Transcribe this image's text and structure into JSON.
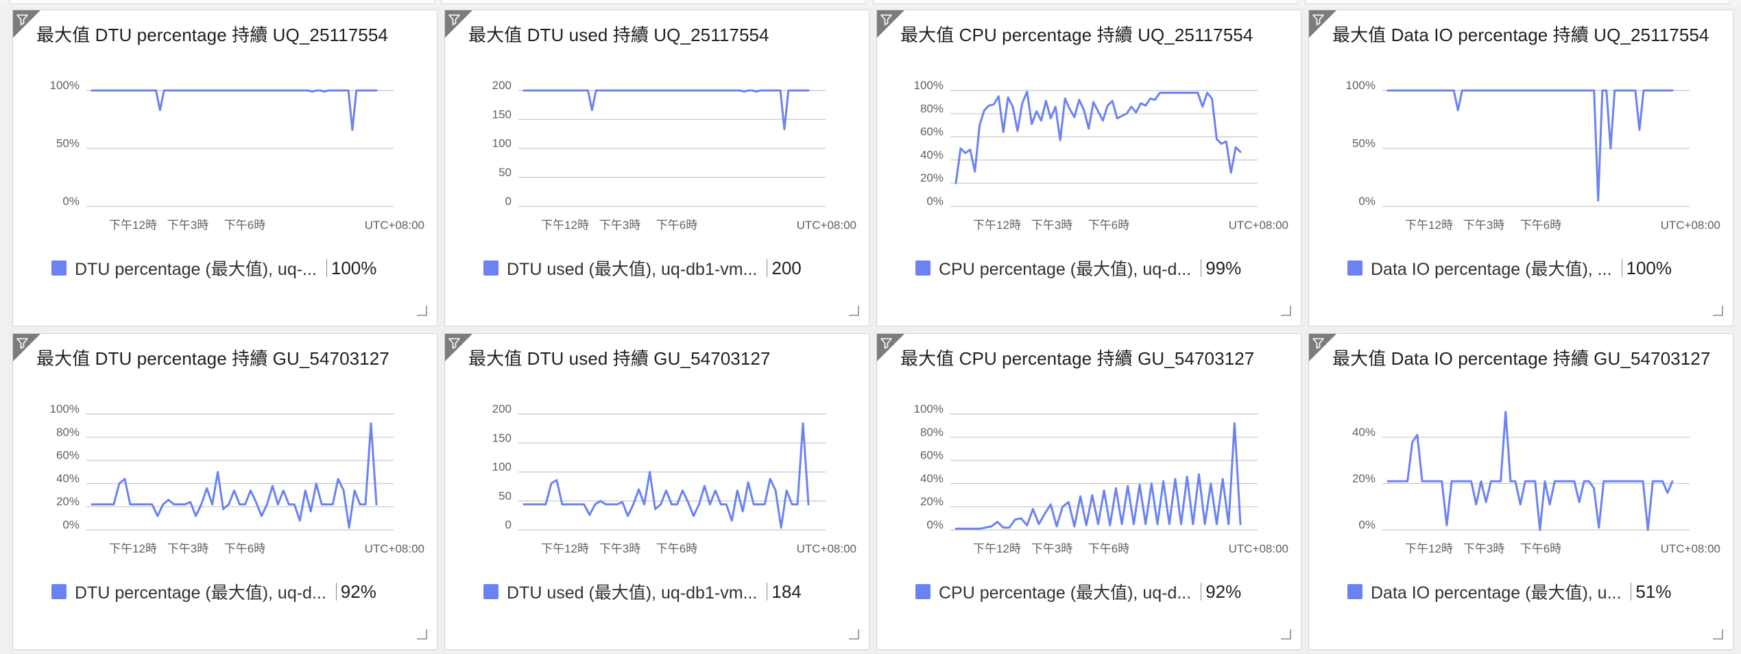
{
  "accent": "#6b82f2",
  "x_axis": {
    "ticks": [
      "下午12時",
      "下午3時",
      "下午6時"
    ],
    "timezone": "UTC+08:00"
  },
  "tiles": [
    {
      "title": "最大值 DTU percentage 持續 UQ_25117554",
      "legend_label": "DTU percentage (最大值), uq-...",
      "legend_value": "100%",
      "chart_data": {
        "type": "line",
        "y_ticks": [
          "0%",
          "50%",
          "100%"
        ],
        "ylim": [
          0,
          100
        ],
        "values": [
          100,
          100,
          100,
          100,
          100,
          100,
          100,
          100,
          100,
          100,
          100,
          100,
          100,
          100,
          100,
          100,
          100,
          83,
          100,
          100,
          100,
          100,
          100,
          100,
          100,
          100,
          100,
          100,
          100,
          100,
          100,
          100,
          100,
          100,
          100,
          100,
          100,
          100,
          100,
          100,
          100,
          100,
          100,
          100,
          100,
          100,
          100,
          100,
          100,
          100,
          100,
          100,
          100,
          100,
          100,
          99,
          100,
          100,
          99,
          100,
          100,
          100,
          100,
          100,
          100,
          66,
          100,
          100,
          100,
          100,
          100,
          100
        ]
      }
    },
    {
      "title": "最大值 DTU used 持續 UQ_25117554",
      "legend_label": "DTU used (最大值), uq-db1-vm...",
      "legend_value": "200",
      "chart_data": {
        "type": "line",
        "y_ticks": [
          "0",
          "50",
          "100",
          "150",
          "200"
        ],
        "ylim": [
          0,
          200
        ],
        "values": [
          200,
          200,
          200,
          200,
          200,
          200,
          200,
          200,
          200,
          200,
          200,
          200,
          200,
          200,
          200,
          200,
          200,
          166,
          200,
          200,
          200,
          200,
          200,
          200,
          200,
          200,
          200,
          200,
          200,
          200,
          200,
          200,
          200,
          200,
          200,
          200,
          200,
          200,
          200,
          200,
          200,
          200,
          200,
          200,
          200,
          200,
          200,
          200,
          200,
          200,
          200,
          200,
          200,
          200,
          200,
          198,
          200,
          200,
          198,
          200,
          200,
          200,
          200,
          200,
          200,
          133,
          200,
          200,
          200,
          200,
          200,
          200
        ]
      }
    },
    {
      "title": "最大值 CPU percentage 持續 UQ_25117554",
      "legend_label": "CPU percentage (最大值), uq-d...",
      "legend_value": "99%",
      "chart_data": {
        "type": "line",
        "y_ticks": [
          "0%",
          "20%",
          "40%",
          "60%",
          "80%",
          "100%"
        ],
        "ylim": [
          0,
          100
        ],
        "values": [
          20,
          50,
          46,
          49,
          30,
          70,
          83,
          87,
          88,
          95,
          64,
          94,
          86,
          65,
          89,
          99,
          71,
          82,
          74,
          91,
          76,
          86,
          57,
          93,
          84,
          77,
          92,
          83,
          67,
          90,
          82,
          74,
          87,
          91,
          76,
          78,
          80,
          86,
          81,
          89,
          87,
          93,
          92,
          98,
          98,
          98,
          98,
          98,
          98,
          98,
          98,
          98,
          86,
          98,
          93,
          58,
          54,
          56,
          29,
          51,
          47
        ]
      }
    },
    {
      "title": "最大值 Data IO percentage 持續 UQ_25117554",
      "legend_label": "Data IO percentage (最大值), ...",
      "legend_value": "100%",
      "chart_data": {
        "type": "line",
        "y_ticks": [
          "0%",
          "50%",
          "100%"
        ],
        "ylim": [
          0,
          100
        ],
        "values": [
          100,
          100,
          100,
          100,
          100,
          100,
          100,
          100,
          100,
          100,
          100,
          100,
          100,
          100,
          100,
          100,
          100,
          83,
          100,
          100,
          100,
          100,
          100,
          100,
          100,
          100,
          100,
          100,
          100,
          100,
          100,
          100,
          100,
          100,
          100,
          100,
          100,
          100,
          100,
          100,
          100,
          100,
          100,
          100,
          100,
          100,
          100,
          100,
          100,
          100,
          100,
          5,
          100,
          100,
          50,
          100,
          100,
          100,
          100,
          100,
          100,
          66,
          100,
          100,
          100,
          100,
          100,
          100,
          100,
          100
        ]
      }
    },
    {
      "title": "最大值 DTU percentage 持續 GU_54703127",
      "legend_label": "DTU percentage (最大值), uq-d...",
      "legend_value": "92%",
      "chart_data": {
        "type": "line",
        "y_ticks": [
          "0%",
          "20%",
          "40%",
          "60%",
          "80%",
          "100%"
        ],
        "ylim": [
          0,
          100
        ],
        "values": [
          22,
          22,
          22,
          22,
          22,
          40,
          44,
          22,
          22,
          22,
          22,
          22,
          12,
          22,
          26,
          22,
          22,
          22,
          24,
          12,
          22,
          36,
          22,
          50,
          18,
          22,
          34,
          22,
          22,
          34,
          24,
          12,
          22,
          38,
          22,
          34,
          22,
          22,
          8,
          34,
          16,
          40,
          22,
          22,
          22,
          44,
          34,
          2,
          34,
          22,
          22,
          92,
          22
        ]
      }
    },
    {
      "title": "最大值 DTU used 持續 GU_54703127",
      "legend_label": "DTU used (最大值), uq-db1-vm...",
      "legend_value": "184",
      "chart_data": {
        "type": "line",
        "y_ticks": [
          "0",
          "50",
          "100",
          "150",
          "200"
        ],
        "ylim": [
          0,
          200
        ],
        "values": [
          44,
          44,
          44,
          44,
          44,
          80,
          86,
          44,
          44,
          44,
          44,
          44,
          26,
          44,
          50,
          44,
          44,
          44,
          48,
          24,
          44,
          70,
          44,
          100,
          36,
          44,
          68,
          44,
          44,
          68,
          48,
          24,
          44,
          76,
          44,
          68,
          44,
          44,
          16,
          68,
          32,
          82,
          44,
          44,
          44,
          88,
          68,
          4,
          68,
          44,
          44,
          184,
          44
        ]
      }
    },
    {
      "title": "最大值 CPU percentage 持續 GU_54703127",
      "legend_label": "CPU percentage (最大值), uq-d...",
      "legend_value": "92%",
      "chart_data": {
        "type": "line",
        "y_ticks": [
          "0%",
          "20%",
          "40%",
          "60%",
          "80%",
          "100%"
        ],
        "ylim": [
          0,
          100
        ],
        "values": [
          1,
          1,
          1,
          1,
          1,
          2,
          3,
          7,
          2,
          2,
          9,
          10,
          4,
          18,
          5,
          14,
          22,
          3,
          20,
          24,
          3,
          29,
          4,
          30,
          5,
          34,
          4,
          36,
          5,
          38,
          5,
          39,
          5,
          40,
          5,
          42,
          5,
          44,
          5,
          46,
          5,
          48,
          5,
          40,
          5,
          44,
          5,
          92,
          5
        ]
      }
    },
    {
      "title": "最大值 Data IO percentage 持續 GU_54703127",
      "legend_label": "Data IO percentage (最大值), u...",
      "legend_value": "51%",
      "chart_data": {
        "type": "line",
        "y_ticks": [
          "0%",
          "20%",
          "40%"
        ],
        "ylim": [
          0,
          50
        ],
        "values": [
          21,
          21,
          21,
          21,
          21,
          38,
          41,
          21,
          21,
          21,
          21,
          21,
          2,
          21,
          21,
          21,
          21,
          21,
          11,
          21,
          12,
          21,
          21,
          21,
          51,
          21,
          21,
          11,
          21,
          21,
          21,
          0,
          21,
          11,
          21,
          21,
          21,
          21,
          21,
          12,
          21,
          21,
          18,
          1,
          21,
          21,
          21,
          21,
          21,
          21,
          21,
          21,
          21,
          0,
          21,
          21,
          21,
          16,
          21
        ]
      }
    }
  ]
}
